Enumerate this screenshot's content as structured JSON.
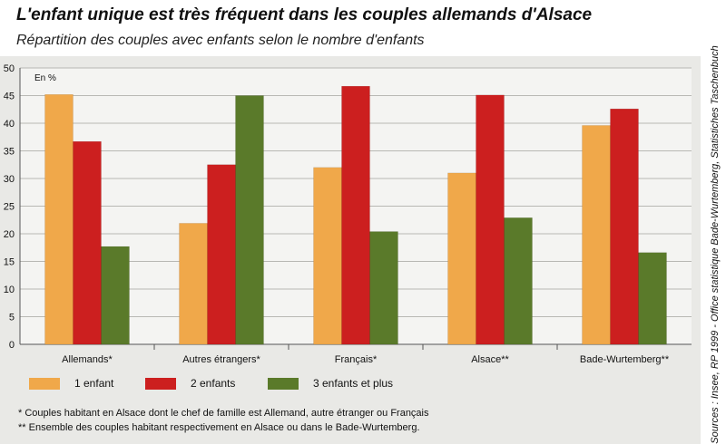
{
  "chart_data": {
    "type": "bar",
    "title": "L'enfant unique est très fréquent dans les couples allemands d'Alsace",
    "subtitle": "Répartition des couples avec enfants selon le nombre d'enfants",
    "ylabel": "En %",
    "ylim": [
      0,
      50
    ],
    "yticks": [
      0,
      5,
      10,
      15,
      20,
      25,
      30,
      35,
      40,
      45,
      50
    ],
    "categories": [
      "Allemands*",
      "Autres étrangers*",
      "Français*",
      "Alsace**",
      "Bade-Wurtemberg**"
    ],
    "series": [
      {
        "name": "1 enfant",
        "color": "#f0a84a",
        "values": [
          45.2,
          21.9,
          32.0,
          31.0,
          39.6
        ]
      },
      {
        "name": "2 enfants",
        "color": "#cc1f1f",
        "values": [
          36.7,
          32.5,
          46.7,
          45.1,
          42.6
        ]
      },
      {
        "name": "3 enfants et plus",
        "color": "#5a7a2a",
        "values": [
          17.7,
          45.0,
          20.4,
          22.9,
          16.6
        ]
      }
    ],
    "grid": true,
    "legend_placement": "bottom"
  },
  "notes": [
    "* Couples habitant en Alsace dont le chef de famille est Allemand, autre étranger ou Français",
    "** Ensemble des couples habitant respectivement en Alsace ou dans le Bade-Wurtemberg."
  ],
  "source": "Sources : Insee, RP 1999 - Office statistique Bade-Wurtemberg, Statistiches Taschenbuch"
}
